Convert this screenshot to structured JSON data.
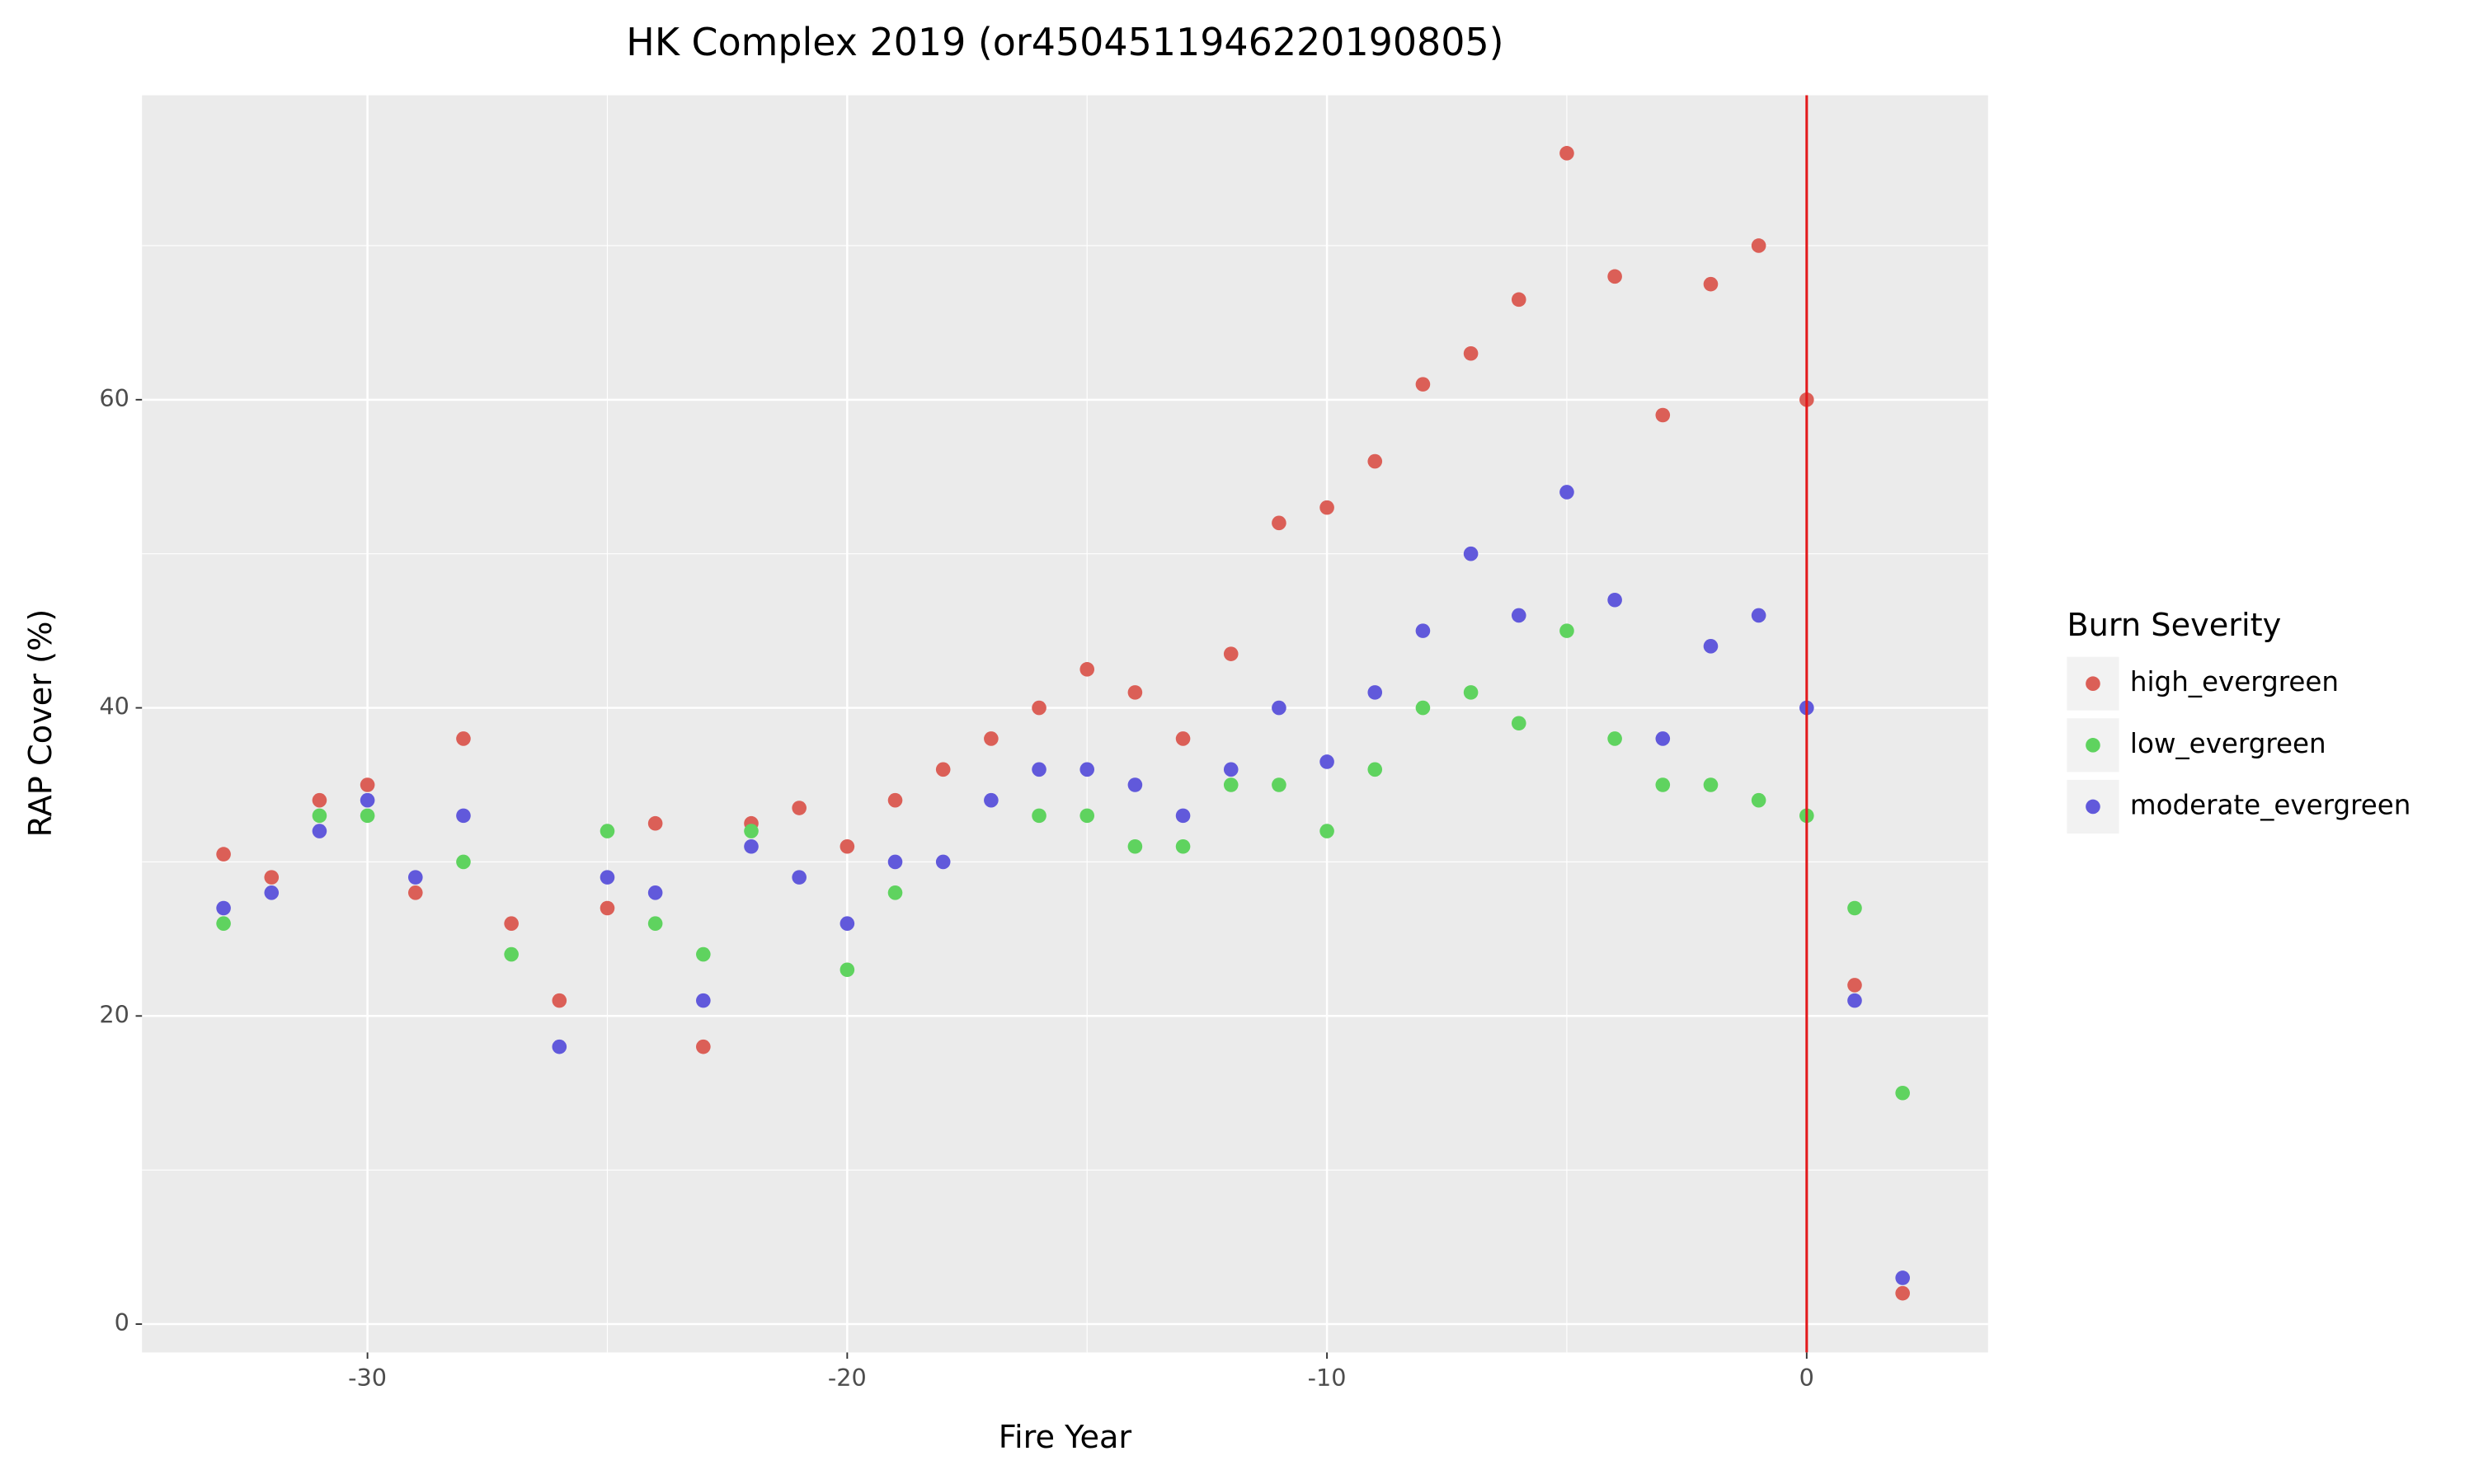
{
  "chart_data": {
    "type": "scatter",
    "title": "HK Complex 2019 (or4504511946220190805)",
    "x_label": "Fire Year",
    "y_label": "RAP Cover (%)",
    "xlim": [
      -34.7,
      3.78
    ],
    "ylim": [
      -1.84,
      79.76
    ],
    "xticks": [
      -30,
      -20,
      -10,
      0
    ],
    "yticks": [
      0,
      20,
      40,
      60
    ],
    "grid": true,
    "vline": {
      "x": 0,
      "color": "#e31a1c"
    },
    "legend_title": "Burn Severity",
    "legend_position": "right",
    "series": [
      {
        "name": "high_evergreen",
        "color": "#db5f57",
        "x": [
          -33,
          -32,
          -31,
          -30,
          -29,
          -28,
          -27,
          -26,
          -25,
          -24,
          -23,
          -22,
          -21,
          -20,
          -19,
          -18,
          -17,
          -16,
          -15,
          -14,
          -13,
          -12,
          -11,
          -10,
          -9,
          -8,
          -7,
          -6,
          -5,
          -4,
          -3,
          -2,
          -1,
          0,
          1,
          2
        ],
        "values": [
          30.5,
          29,
          34,
          35,
          28,
          38,
          26,
          21,
          27,
          32.5,
          18,
          32.5,
          33.5,
          31,
          34,
          36,
          38,
          40,
          42.5,
          41,
          38,
          43.5,
          52,
          53,
          56,
          61,
          63,
          66.5,
          76,
          68,
          59,
          67.5,
          70,
          60,
          22,
          2
        ]
      },
      {
        "name": "low_evergreen",
        "color": "#5fd35f",
        "x": [
          -33,
          -31,
          -30,
          -28,
          -27,
          -25,
          -24,
          -23,
          -22,
          -20,
          -19,
          -16,
          -15,
          -14,
          -13,
          -12,
          -11,
          -10,
          -9,
          -8,
          -7,
          -6,
          -5,
          -4,
          -3,
          -2,
          -1,
          0,
          1,
          2
        ],
        "values": [
          26,
          33,
          33,
          30,
          24,
          32,
          26,
          24,
          32,
          23,
          28,
          33,
          33,
          31,
          31,
          35,
          35,
          32,
          36,
          40,
          41,
          39,
          45,
          38,
          35,
          35,
          34,
          33,
          27,
          15
        ]
      },
      {
        "name": "moderate_evergreen",
        "color": "#6159db",
        "x": [
          -33,
          -32,
          -31,
          -30,
          -29,
          -28,
          -26,
          -25,
          -24,
          -23,
          -22,
          -21,
          -20,
          -19,
          -18,
          -17,
          -16,
          -15,
          -14,
          -13,
          -12,
          -11,
          -10,
          -9,
          -8,
          -7,
          -6,
          -5,
          -4,
          -3,
          -2,
          -1,
          0,
          1,
          2
        ],
        "values": [
          27,
          28,
          32,
          34,
          29,
          33,
          18,
          29,
          28,
          21,
          31,
          29,
          26,
          30,
          30,
          34,
          36,
          36,
          35,
          33,
          36,
          40,
          36.5,
          41,
          45,
          50,
          46,
          54,
          47,
          38,
          44,
          46,
          40,
          21,
          3
        ]
      }
    ]
  }
}
